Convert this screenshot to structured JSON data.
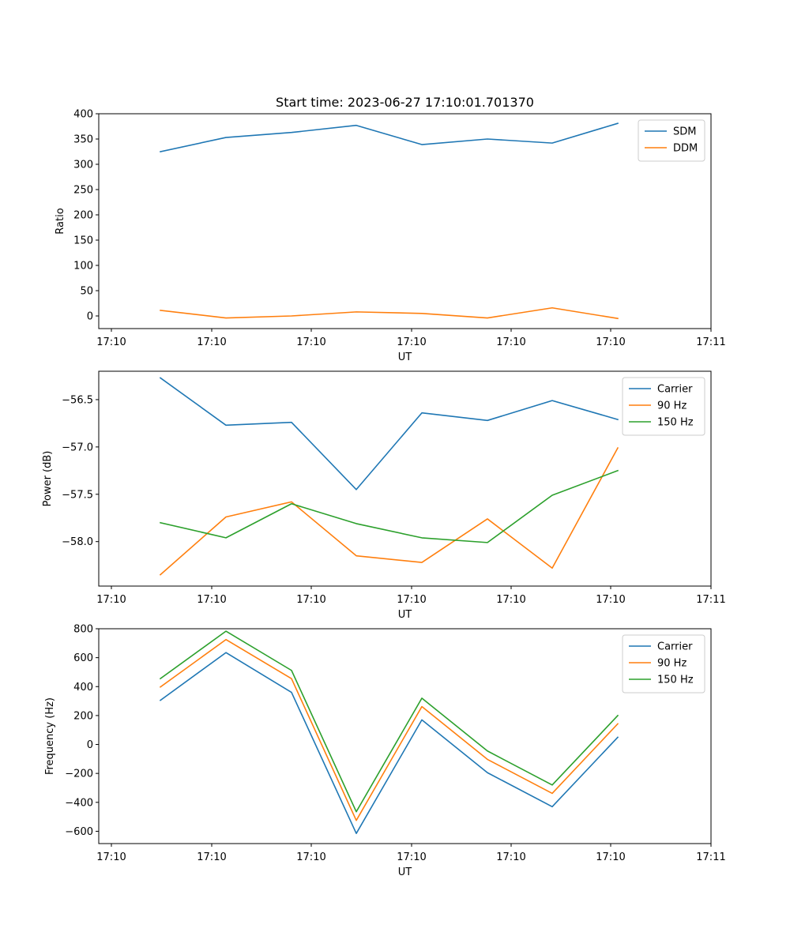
{
  "chart_data": [
    {
      "type": "line",
      "title": "Start time: 2023-06-27 17:10:01.701370",
      "xlabel": "UT",
      "ylabel": "Ratio",
      "x_tick_labels": [
        "17:10",
        "17:10",
        "17:10",
        "17:10",
        "17:10",
        "17:10",
        "17:10",
        "17:11"
      ],
      "y_ticks": [
        "0",
        "50",
        "100",
        "150",
        "200",
        "250",
        "300",
        "350",
        "400"
      ],
      "ylim": [
        -25,
        400
      ],
      "legend_position": "top-right",
      "series": [
        {
          "name": "SDM",
          "color": "#1f77b4",
          "values": [
            325,
            353,
            363,
            377,
            339,
            350,
            342,
            381
          ]
        },
        {
          "name": "DDM",
          "color": "#ff7f0e",
          "values": [
            11,
            -4,
            0,
            8,
            5,
            -4,
            16,
            -5
          ]
        }
      ]
    },
    {
      "type": "line",
      "title": "",
      "xlabel": "UT",
      "ylabel": "Power (dB)",
      "x_tick_labels": [
        "17:10",
        "17:10",
        "17:10",
        "17:10",
        "17:10",
        "17:10",
        "17:10",
        "17:11"
      ],
      "y_ticks": [
        "−58.0",
        "−57.5",
        "−57.0",
        "−56.5"
      ],
      "ylim": [
        -58.47,
        -56.2
      ],
      "legend_position": "top-right",
      "series": [
        {
          "name": "Carrier",
          "color": "#1f77b4",
          "values": [
            -56.27,
            -56.77,
            -56.74,
            -57.45,
            -56.64,
            -56.72,
            -56.51,
            -56.71
          ]
        },
        {
          "name": "90 Hz",
          "color": "#ff7f0e",
          "values": [
            -58.35,
            -57.74,
            -57.58,
            -58.15,
            -58.22,
            -57.76,
            -58.28,
            -57.01
          ]
        },
        {
          "name": "150 Hz",
          "color": "#2ca02c",
          "values": [
            -57.8,
            -57.96,
            -57.6,
            -57.81,
            -57.96,
            -58.01,
            -57.51,
            -57.25
          ]
        }
      ]
    },
    {
      "type": "line",
      "title": "",
      "xlabel": "UT",
      "ylabel": "Frequency (Hz)",
      "x_tick_labels": [
        "17:10",
        "17:10",
        "17:10",
        "17:10",
        "17:10",
        "17:10",
        "17:10",
        "17:11"
      ],
      "y_ticks": [
        "−600",
        "−400",
        "−200",
        "0",
        "200",
        "400",
        "600",
        "800"
      ],
      "ylim": [
        -685,
        800
      ],
      "legend_position": "top-right",
      "series": [
        {
          "name": "Carrier",
          "color": "#1f77b4",
          "values": [
            305,
            635,
            360,
            -615,
            170,
            -195,
            -430,
            50
          ]
        },
        {
          "name": "90 Hz",
          "color": "#ff7f0e",
          "values": [
            397,
            725,
            455,
            -525,
            262,
            -103,
            -338,
            143
          ]
        },
        {
          "name": "150 Hz",
          "color": "#2ca02c",
          "values": [
            455,
            783,
            512,
            -465,
            320,
            -45,
            -280,
            200
          ]
        }
      ]
    }
  ]
}
